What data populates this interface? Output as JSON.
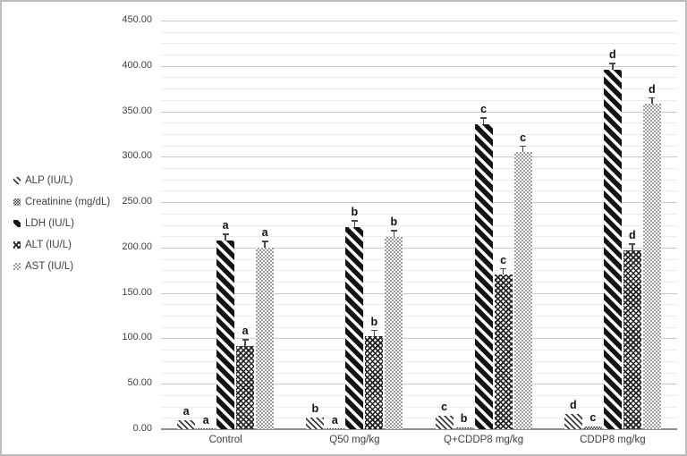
{
  "figure": {
    "background": "#ffffff",
    "border_color": "#bdbdbd",
    "text_color": "#404040",
    "major_grid_color": "#c9c9c9",
    "minor_grid_color": "#ececec",
    "axis_line_color": "#8c8c8c"
  },
  "chart_data": {
    "type": "bar",
    "title": "",
    "xlabel": "",
    "ylabel": "",
    "categories": [
      "Control",
      "Q50 mg/kg",
      "Q+CDDP8 mg/kg",
      "CDDP8 mg/kg"
    ],
    "series": [
      {
        "name": "ALP (IU/L)",
        "pattern": "alp",
        "values": [
          10,
          13,
          15,
          17
        ],
        "letters": [
          "a",
          "b",
          "c",
          "d"
        ]
      },
      {
        "name": "Creatinine (mg/dL)",
        "pattern": "creatinine",
        "values": [
          1,
          1,
          2,
          3
        ],
        "letters": [
          "a",
          "a",
          "b",
          "c"
        ]
      },
      {
        "name": "LDH (IU/L)",
        "pattern": "ldh",
        "values": [
          208,
          223,
          336,
          396
        ],
        "letters": [
          "a",
          "b",
          "c",
          "d"
        ]
      },
      {
        "name": "ALT (IU/L)",
        "pattern": "alt",
        "values": [
          92,
          102,
          170,
          197
        ],
        "letters": [
          "a",
          "b",
          "c",
          "d"
        ]
      },
      {
        "name": "AST (IU/L)",
        "pattern": "ast",
        "values": [
          200,
          212,
          305,
          358
        ],
        "letters": [
          "a",
          "b",
          "c",
          "d"
        ]
      }
    ],
    "y_axis": {
      "min": 0,
      "max": 450,
      "major_unit": 50,
      "minor_unit": 12.5,
      "tick_decimals": 2
    },
    "y_tick_labels": [
      "0.00",
      "50.00",
      "100.00",
      "150.00",
      "200.00",
      "250.00",
      "300.00",
      "350.00",
      "400.00",
      "450.00"
    ],
    "legend_position": "left",
    "grid": true,
    "error_bars": true
  }
}
